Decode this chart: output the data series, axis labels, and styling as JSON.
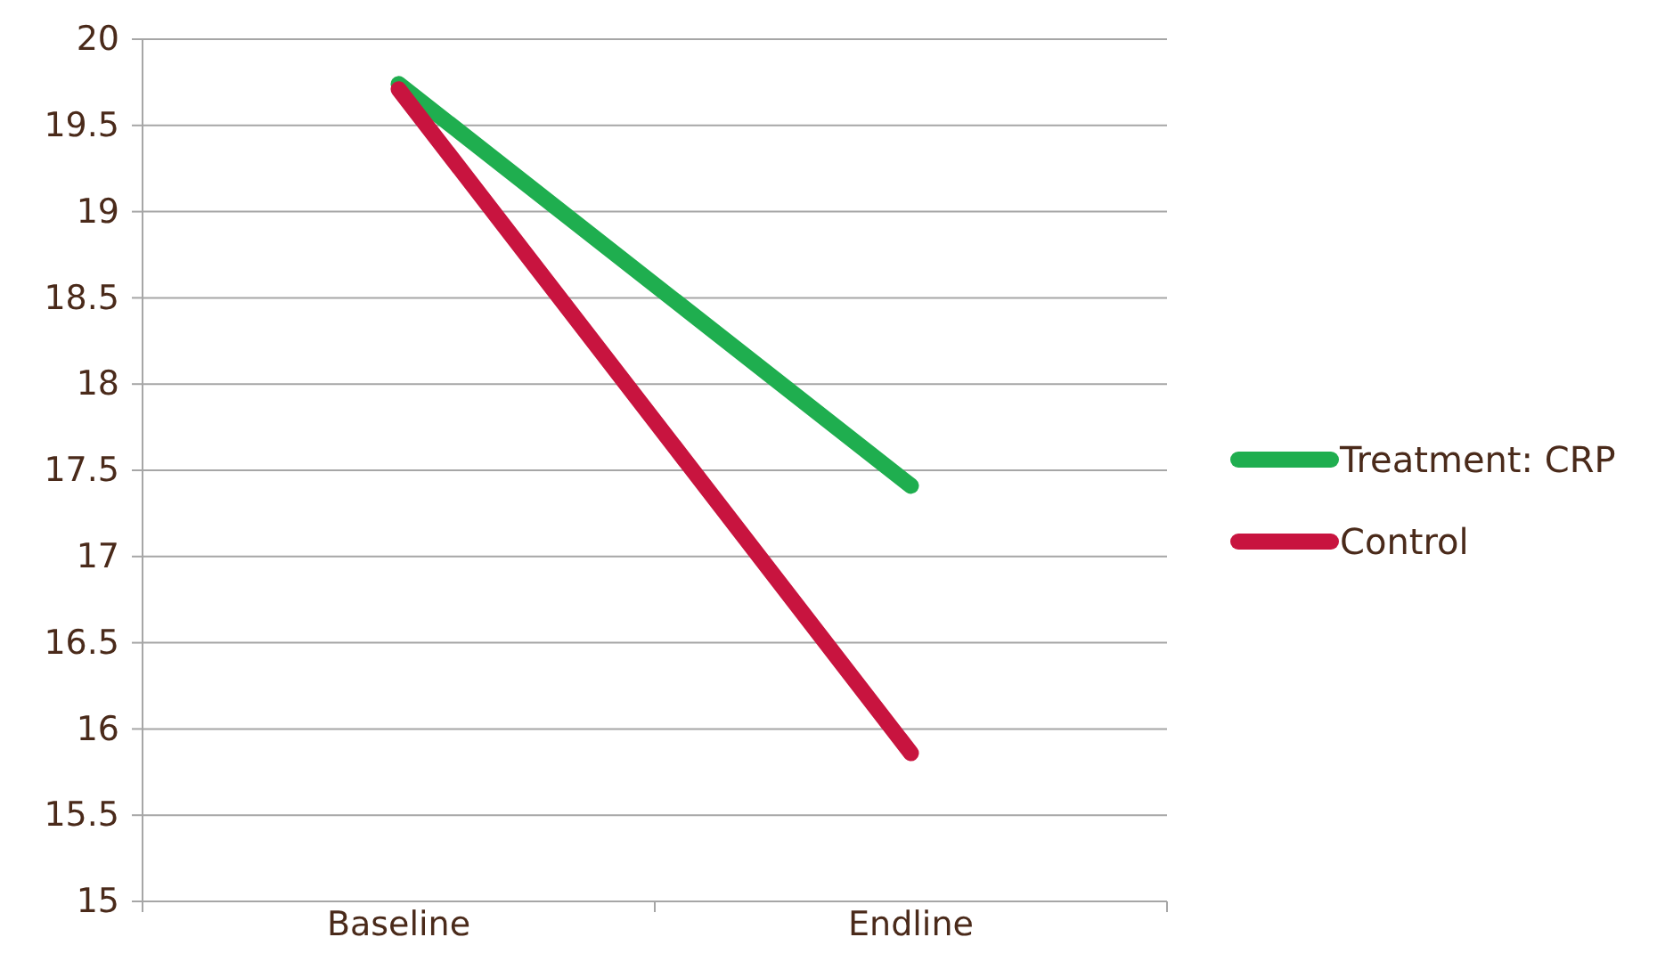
{
  "chart_data": {
    "type": "line",
    "categories": [
      "Baseline",
      "Endline"
    ],
    "series": [
      {
        "name": "Treatment: CRP",
        "color": "#1fae4f",
        "values": [
          19.74,
          17.41
        ]
      },
      {
        "name": "Control",
        "color": "#c8143f",
        "values": [
          19.71,
          15.86
        ]
      }
    ],
    "ylim": [
      15,
      20
    ],
    "yticks": [
      15,
      15.5,
      16,
      16.5,
      17,
      17.5,
      18,
      18.5,
      19,
      19.5,
      20
    ],
    "grid": "y",
    "legend": "right",
    "marker": "none",
    "line_style": "solid"
  }
}
